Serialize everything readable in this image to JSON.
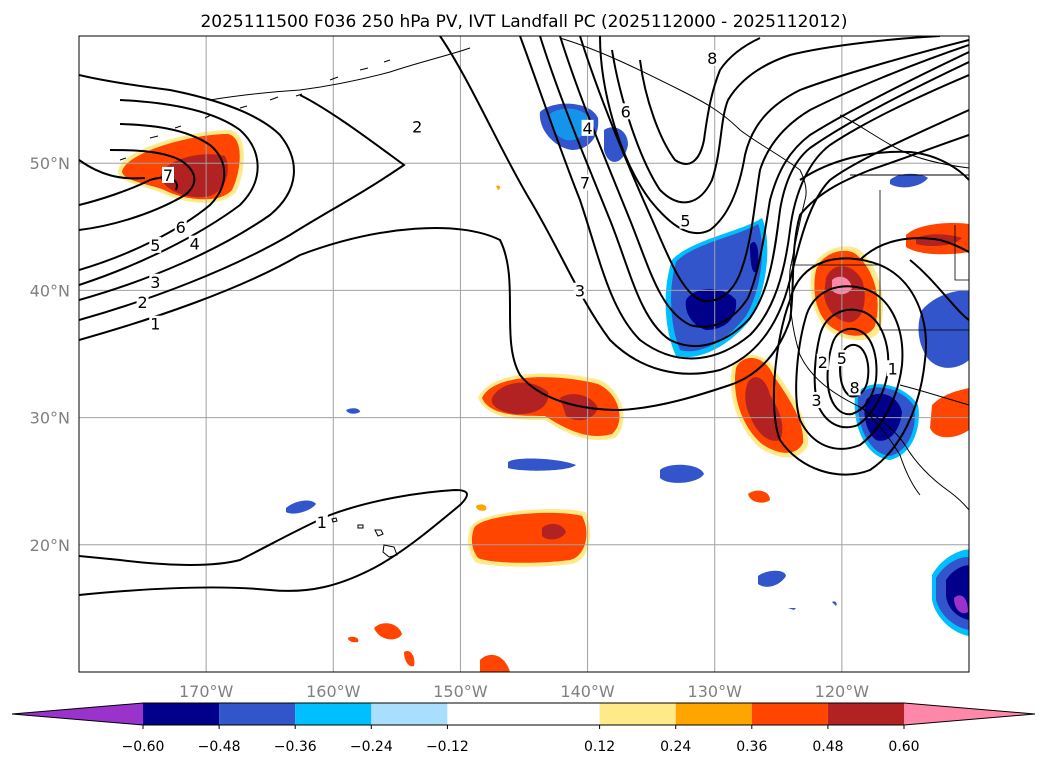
{
  "figure": {
    "title": "2025111500 F036 250 hPa PV, IVT Landfall PC (2025112000 - 2025112012)"
  },
  "map": {
    "lon_range": [
      -180,
      -110
    ],
    "lat_range": [
      10,
      60
    ],
    "lon_ticks": [
      {
        "value": -170,
        "label": "170°W"
      },
      {
        "value": -160,
        "label": "160°W"
      },
      {
        "value": -150,
        "label": "150°W"
      },
      {
        "value": -140,
        "label": "140°W"
      },
      {
        "value": -130,
        "label": "130°W"
      },
      {
        "value": -120,
        "label": "120°W"
      }
    ],
    "lat_ticks": [
      {
        "value": 20,
        "label": "20°N"
      },
      {
        "value": 30,
        "label": "30°N"
      },
      {
        "value": 40,
        "label": "40°N"
      },
      {
        "value": 50,
        "label": "50°N"
      }
    ],
    "gridlines": true,
    "pv_contour_labels": [
      {
        "text": "2",
        "lon": -153.4,
        "lat": 52.8
      },
      {
        "text": "7",
        "lon": -173.0,
        "lat": 49.0
      },
      {
        "text": "6",
        "lon": -172.0,
        "lat": 44.9
      },
      {
        "text": "5",
        "lon": -174.0,
        "lat": 43.5
      },
      {
        "text": "4",
        "lon": -170.9,
        "lat": 43.6
      },
      {
        "text": "3",
        "lon": -174.0,
        "lat": 40.6
      },
      {
        "text": "2",
        "lon": -175.0,
        "lat": 39.0
      },
      {
        "text": "1",
        "lon": -174.0,
        "lat": 37.3
      },
      {
        "text": "4",
        "lon": -140.0,
        "lat": 52.7
      },
      {
        "text": "6",
        "lon": -137.0,
        "lat": 54.0
      },
      {
        "text": "7",
        "lon": -140.2,
        "lat": 48.4
      },
      {
        "text": "8",
        "lon": -130.2,
        "lat": 58.2
      },
      {
        "text": "5",
        "lon": -132.3,
        "lat": 45.4
      },
      {
        "text": "3",
        "lon": -140.6,
        "lat": 39.9
      },
      {
        "text": "2",
        "lon": -121.5,
        "lat": 34.3
      },
      {
        "text": "5",
        "lon": -120.0,
        "lat": 34.6
      },
      {
        "text": "3",
        "lon": -122.0,
        "lat": 31.3
      },
      {
        "text": "8",
        "lon": -119.0,
        "lat": 32.3
      },
      {
        "text": "1",
        "lon": -116.0,
        "lat": 33.8
      },
      {
        "text": "1",
        "lon": -160.9,
        "lat": 21.7
      }
    ]
  },
  "colorbar": {
    "levels": [
      -0.6,
      -0.48,
      -0.36,
      -0.24,
      -0.12,
      0.12,
      0.24,
      0.36,
      0.48,
      0.6
    ],
    "tick_labels": [
      "−0.60",
      "−0.48",
      "−0.36",
      "−0.24",
      "−0.12",
      "0.12",
      "0.24",
      "0.36",
      "0.48",
      "0.60"
    ],
    "extend": "both",
    "colors": [
      "#9933cc",
      "#00008b",
      "#3355cc",
      "#00bfff",
      "#aadeff",
      "#ffffff",
      "#ffea8a",
      "#ffa500",
      "#ff4500",
      "#b22222",
      "#ff88aa"
    ]
  },
  "colors": {
    "contour": "#000000",
    "grid": "#a0a0a0",
    "coast": "#000000"
  }
}
